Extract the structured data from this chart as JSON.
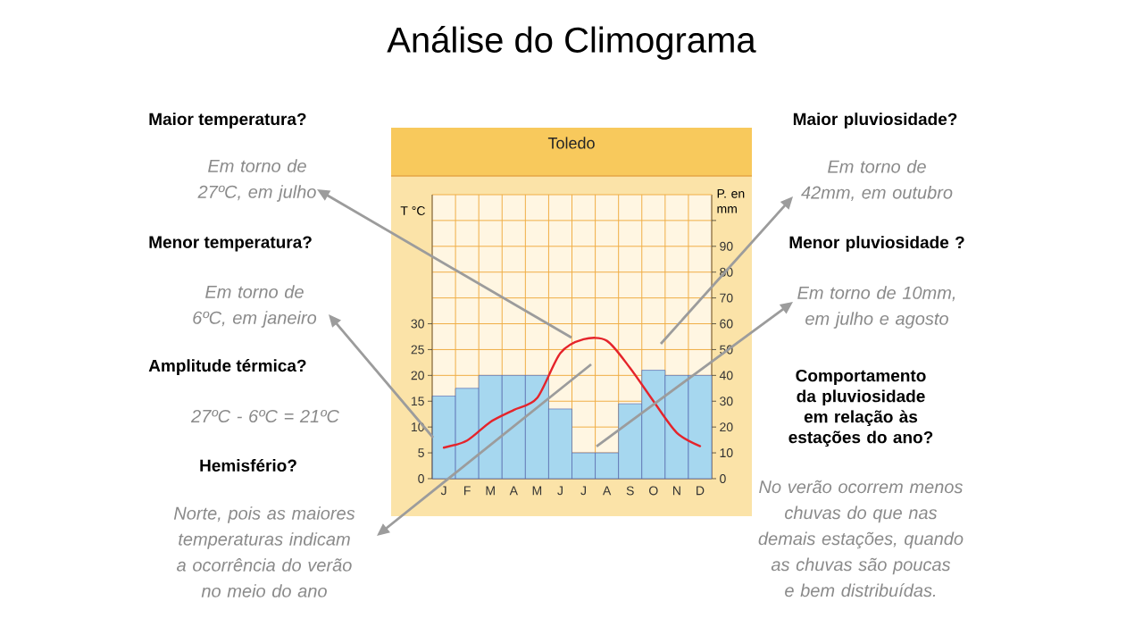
{
  "chart_data": {
    "type": "bar",
    "title": "Análise do Climograma",
    "subtitle": "Toledo",
    "categories": [
      "J",
      "F",
      "M",
      "A",
      "M",
      "J",
      "J",
      "A",
      "S",
      "O",
      "N",
      "D"
    ],
    "series": [
      {
        "axis": "y2",
        "color": "#a6d7ef",
        "values": [
          32,
          35,
          40,
          40,
          40,
          27,
          10,
          10,
          29,
          42,
          40,
          40
        ]
      },
      {
        "type": "line",
        "color": "#e5242b",
        "values": [
          6,
          7.4,
          11,
          13.3,
          15.6,
          24.3,
          27,
          26.7,
          21.4,
          15,
          8.9,
          6.3
        ]
      }
    ],
    "ylabel": "T °C",
    "y2label": "P. en mm",
    "ylim": [
      0,
      55
    ],
    "yticks": [
      0,
      5,
      10,
      15,
      20,
      25,
      30
    ],
    "y2lim": [
      0,
      110
    ],
    "y2ticks": [
      0,
      10,
      20,
      30,
      40,
      50,
      60,
      70,
      80,
      90,
      {
        "value": 100,
        "label": null
      }
    ],
    "grid": true,
    "annotations": [
      "Maior temperatura?",
      "Em torno de 27ºC, em julho",
      "Menor temperatura?",
      "Em torno de 6ºC, em janeiro",
      "Amplitude térmica?",
      "27ºC - 6ºC = 21ºC",
      "Hemisfério?",
      "Norte, pois as maiores temperaturas indicam a ocorrência do verão no meio do ano",
      "Maior pluviosidade?",
      "Em torno de 42mm, em outubro",
      "Menor pluviosidade ?",
      "Em torno de 10mm, em julho e agosto",
      "Comportamento da pluviosidade em relação às estações do ano?",
      "No verão ocorrem menos chuvas do que nas demais estações, quando as chuvas são poucas e bem distribuídas."
    ]
  }
}
